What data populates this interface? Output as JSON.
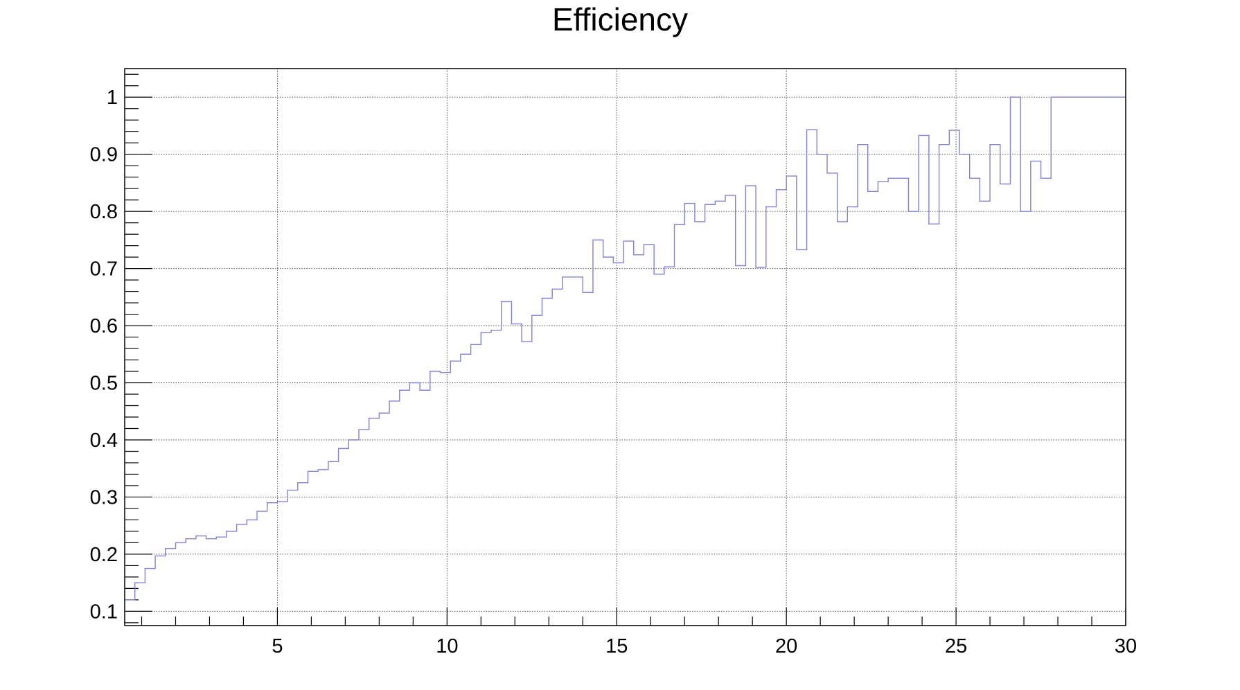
{
  "chart_data": {
    "type": "line",
    "style": "step-histogram",
    "title": "Efficiency",
    "xlabel": "",
    "ylabel": "",
    "xlim": [
      0.5,
      30
    ],
    "ylim": [
      0.075,
      1.05
    ],
    "grid": true,
    "line_color": "#8080e0",
    "x_ticks": [
      5,
      10,
      15,
      20,
      25,
      30
    ],
    "x_tick_labels": [
      "5",
      "10",
      "15",
      "20",
      "25",
      "30"
    ],
    "y_ticks": [
      0.1,
      0.2,
      0.3,
      0.4,
      0.5,
      0.6,
      0.7,
      0.8,
      0.9,
      1.0
    ],
    "y_tick_labels": [
      "0.1",
      "0.2",
      "0.3",
      "0.4",
      "0.5",
      "0.6",
      "0.7",
      "0.8",
      "0.9",
      "1"
    ],
    "bin_width": 0.3,
    "bin_start": 0.5,
    "series": [
      {
        "values": [
          0.12,
          0.15,
          0.175,
          0.197,
          0.21,
          0.22,
          0.227,
          0.232,
          0.227,
          0.23,
          0.24,
          0.252,
          0.26,
          0.275,
          0.29,
          0.292,
          0.312,
          0.325,
          0.345,
          0.348,
          0.362,
          0.385,
          0.4,
          0.418,
          0.438,
          0.447,
          0.468,
          0.487,
          0.5,
          0.487,
          0.52,
          0.518,
          0.538,
          0.55,
          0.567,
          0.588,
          0.592,
          0.642,
          0.603,
          0.572,
          0.618,
          0.648,
          0.664,
          0.685,
          0.685,
          0.658,
          0.75,
          0.72,
          0.71,
          0.748,
          0.724,
          0.742,
          0.69,
          0.703,
          0.777,
          0.814,
          0.782,
          0.812,
          0.818,
          0.828,
          0.705,
          0.845,
          0.702,
          0.808,
          0.838,
          0.862,
          0.733,
          0.943,
          0.9,
          0.867,
          0.782,
          0.808,
          0.917,
          0.835,
          0.852,
          0.858,
          0.858,
          0.8,
          0.933,
          0.778,
          0.917,
          0.942,
          0.9,
          0.858,
          0.818,
          0.917,
          0.848,
          1.0,
          0.8,
          0.888,
          0.858,
          1.0,
          1.0,
          1.0,
          1.0,
          1.0,
          1.0,
          1.0,
          1.0
        ]
      }
    ]
  }
}
